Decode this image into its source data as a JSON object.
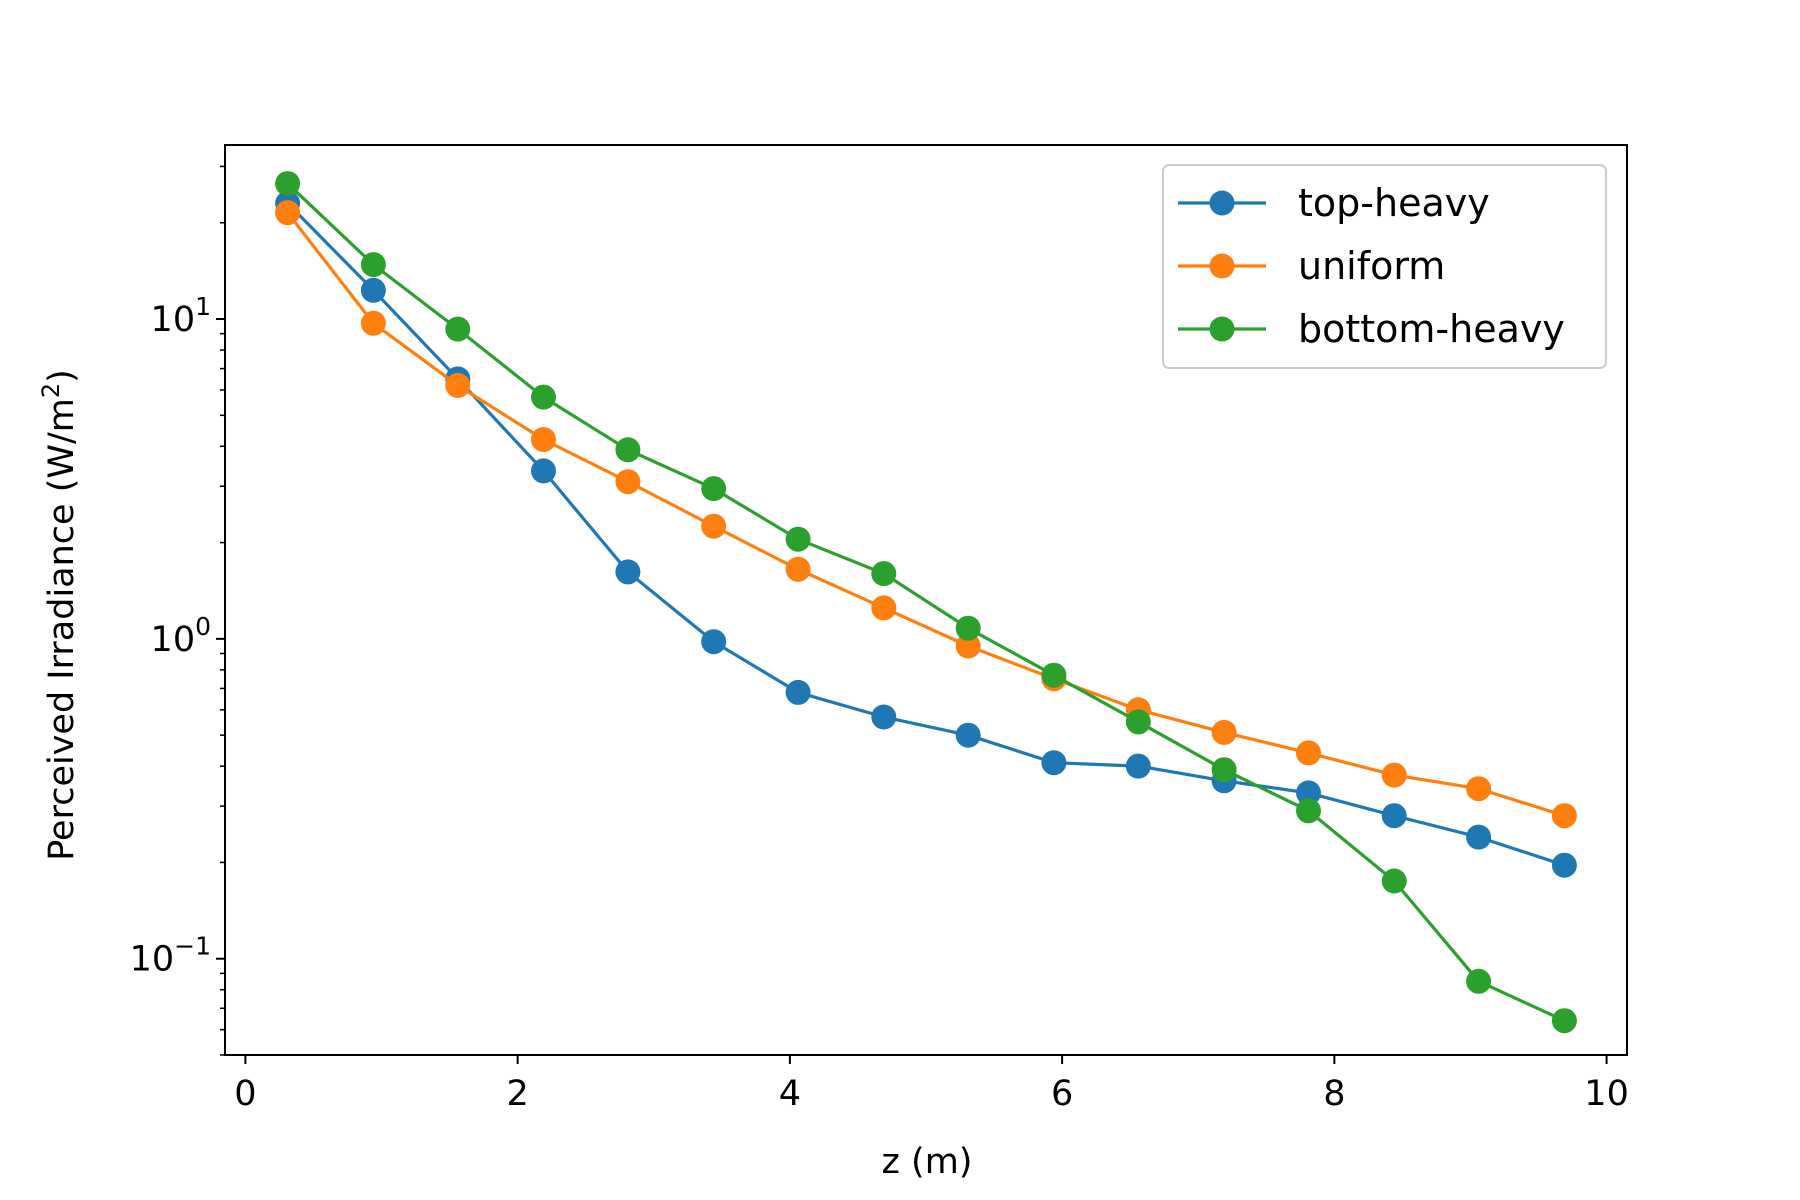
{
  "chart_data": {
    "type": "line",
    "xlabel": "z (m)",
    "ylabel_main": "Perceived Irradiance (W/m",
    "ylabel_sup": "2",
    "ylabel_close": ")",
    "xlim": [
      -0.15,
      10.15
    ],
    "ylim": [
      0.05,
      35
    ],
    "yscale": "log",
    "grid": false,
    "legend_position": "upper right",
    "x_ticks": [
      {
        "value": 0,
        "label": "0"
      },
      {
        "value": 2,
        "label": "2"
      },
      {
        "value": 4,
        "label": "4"
      },
      {
        "value": 6,
        "label": "6"
      },
      {
        "value": 8,
        "label": "8"
      },
      {
        "value": 10,
        "label": "10"
      }
    ],
    "y_ticks": [
      {
        "value": 0.1,
        "base": "10",
        "exp": "−1"
      },
      {
        "value": 1,
        "base": "10",
        "exp": "0"
      },
      {
        "value": 10,
        "base": "10",
        "exp": "1"
      }
    ],
    "x": [
      0.31,
      0.94,
      1.56,
      2.19,
      2.81,
      3.44,
      4.06,
      4.69,
      5.31,
      5.94,
      6.56,
      7.19,
      7.81,
      8.44,
      9.06,
      9.69
    ],
    "series": [
      {
        "name": "top-heavy",
        "color": "#1f77b4",
        "values": [
          23.0,
          12.3,
          6.5,
          3.35,
          1.62,
          0.98,
          0.68,
          0.57,
          0.5,
          0.41,
          0.4,
          0.36,
          0.33,
          0.28,
          0.24,
          0.196
        ]
      },
      {
        "name": "uniform",
        "color": "#ff7f0e",
        "values": [
          21.5,
          9.7,
          6.2,
          4.2,
          3.1,
          2.25,
          1.65,
          1.25,
          0.95,
          0.75,
          0.6,
          0.51,
          0.44,
          0.375,
          0.34,
          0.28
        ]
      },
      {
        "name": "bottom-heavy",
        "color": "#2ca02c",
        "values": [
          26.5,
          14.8,
          9.3,
          5.7,
          3.9,
          2.95,
          2.05,
          1.6,
          1.08,
          0.77,
          0.55,
          0.39,
          0.29,
          0.175,
          0.085,
          0.064
        ]
      }
    ]
  }
}
